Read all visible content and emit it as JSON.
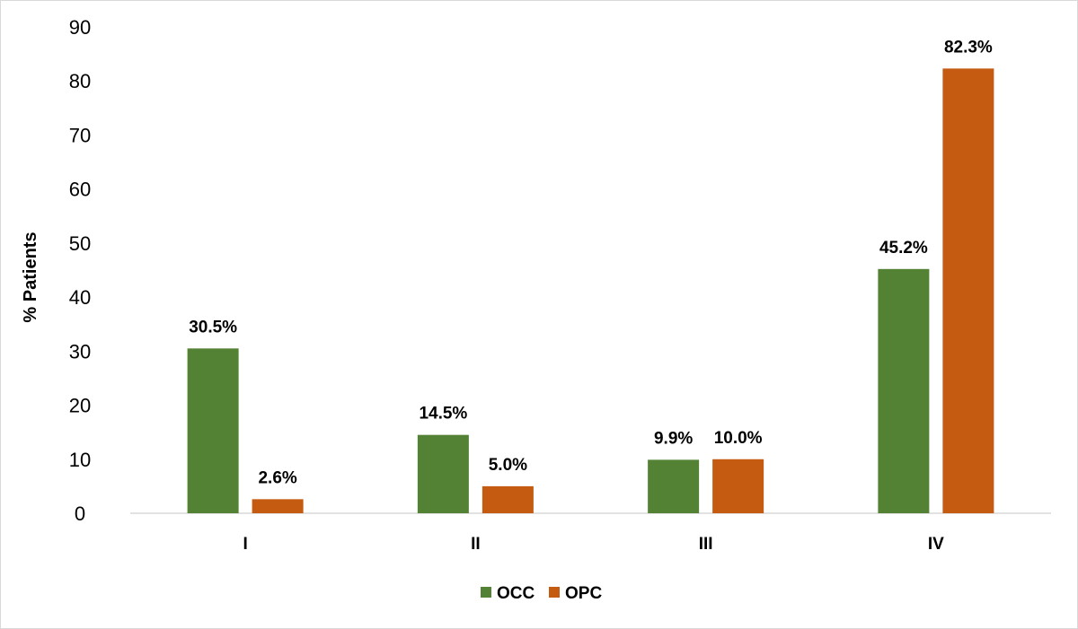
{
  "chart_data": {
    "type": "bar",
    "title": "",
    "xlabel": "",
    "ylabel": "% Patients",
    "ylim": [
      0,
      90
    ],
    "yticks": [
      0,
      10,
      20,
      30,
      40,
      50,
      60,
      70,
      80,
      90
    ],
    "categories": [
      "I",
      "II",
      "III",
      "IV"
    ],
    "series": [
      {
        "name": "OCC",
        "color": "#548235",
        "values": [
          30.5,
          14.5,
          9.9,
          45.2
        ],
        "labels": [
          "30.5%",
          "14.5%",
          "9.9%",
          "45.2%"
        ]
      },
      {
        "name": "OPC",
        "color": "#C55A11",
        "values": [
          2.6,
          5.0,
          10.0,
          82.3
        ],
        "labels": [
          "2.6%",
          "5.0%",
          "10.0%",
          "82.3%"
        ]
      }
    ],
    "grid": false,
    "legend": "bottom"
  }
}
